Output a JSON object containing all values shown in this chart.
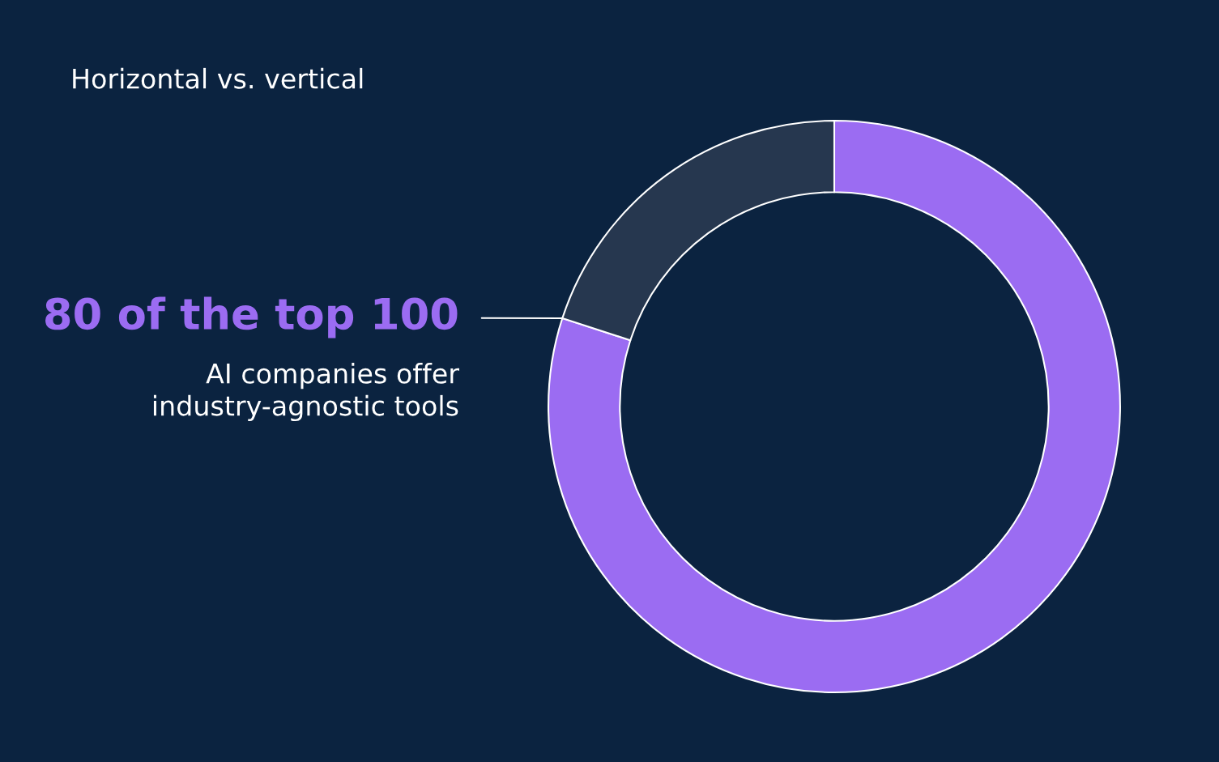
{
  "chart_data": {
    "type": "donut",
    "title": "Horizontal vs. vertical",
    "categories": [
      null,
      null
    ],
    "values": [
      80,
      20
    ],
    "colors": [
      "#9b6cf2",
      "#26374f"
    ],
    "annotations": [
      "80 of the top 100",
      "AI companies offer\nindustry-agnostic tools"
    ]
  }
}
